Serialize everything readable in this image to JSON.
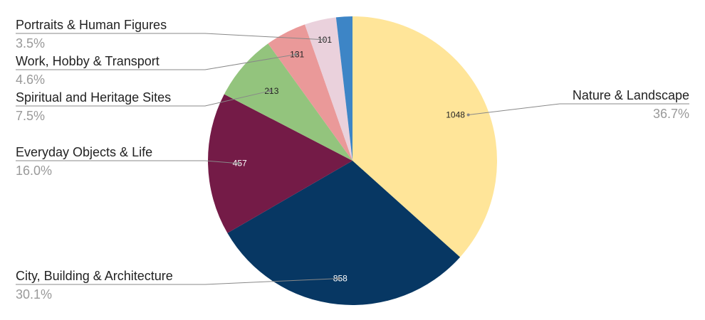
{
  "chart_data": {
    "type": "pie",
    "title": "",
    "slices": [
      {
        "label": "Nature & Landscape",
        "value": 1048,
        "percent": "36.7%",
        "color": "#FFE599",
        "text_color": "#222222"
      },
      {
        "label": "City, Building & Architecture",
        "value": 858,
        "percent": "30.1%",
        "color": "#073763",
        "text_color": "#ffffff"
      },
      {
        "label": "Everyday Objects & Life",
        "value": 457,
        "percent": "16.0%",
        "color": "#741B47",
        "text_color": "#ffffff"
      },
      {
        "label": "Spiritual and Heritage Sites",
        "value": 213,
        "percent": "7.5%",
        "color": "#93C47D",
        "text_color": "#222222"
      },
      {
        "label": "Work, Hobby & Transport",
        "value": 131,
        "percent": "4.6%",
        "color": "#EA9999",
        "text_color": "#222222"
      },
      {
        "label": "Portraits & Human Figures",
        "value": 101,
        "percent": "3.5%",
        "color": "#EAD1DC",
        "text_color": "#222222"
      },
      {
        "label": "",
        "value": 52,
        "percent": "",
        "color": "#3D85C6",
        "text_color": "#ffffff"
      }
    ],
    "legend": "none",
    "label_position": "outside-with-leader-lines"
  }
}
